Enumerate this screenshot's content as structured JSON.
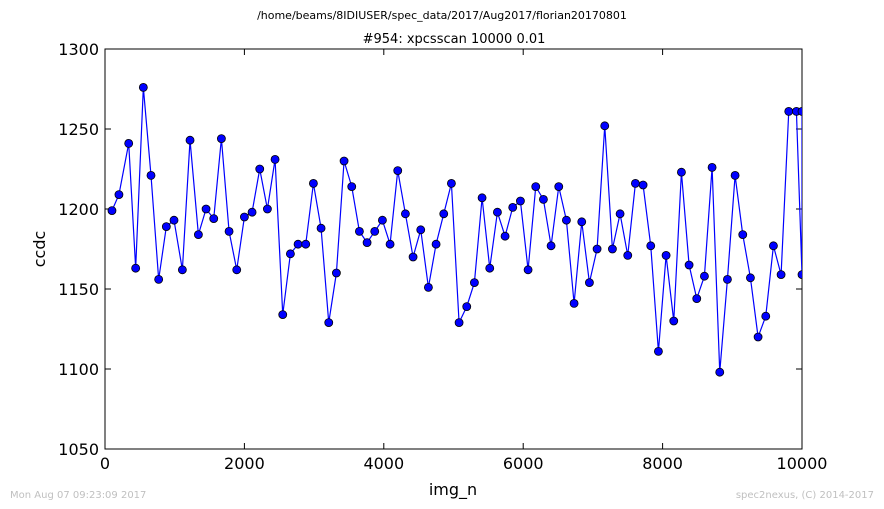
{
  "header": {
    "suptitle": "/home/beams/8IDIUSER/spec_data/2017/Aug2017/florian20170801",
    "title": "#954: xpcsscan 10000 0.01"
  },
  "footer": {
    "timestamp": "Mon Aug 07 09:23:09 2017",
    "credit": "spec2nexus, (C) 2014-2017"
  },
  "colors": {
    "line": "#0000ff",
    "marker_edge": "#000000",
    "footer_text": "#c0c0c0"
  },
  "chart_data": {
    "type": "line",
    "title": "#954: xpcsscan 10000 0.01",
    "xlabel": "img_n",
    "ylabel": "ccdc",
    "xlim": [
      0,
      10000
    ],
    "ylim": [
      1050,
      1300
    ],
    "xticks": [
      0,
      2000,
      4000,
      6000,
      8000,
      10000
    ],
    "yticks": [
      1050,
      1100,
      1150,
      1200,
      1250,
      1300
    ],
    "xtick_labels": [
      "0",
      "2000",
      "4000",
      "6000",
      "8000",
      "10000"
    ],
    "ytick_labels": [
      "1050",
      "1100",
      "1150",
      "1200",
      "1250",
      "1300"
    ],
    "grid": false,
    "legend": "none",
    "marker": "circle",
    "series": [
      {
        "x": [
          100,
          200,
          340,
          440,
          550,
          660,
          770,
          880,
          990,
          1110,
          1220,
          1340,
          1450,
          1560,
          1670,
          1780,
          1890,
          2000,
          2110,
          2220,
          2330,
          2440,
          2550,
          2660,
          2770,
          2880,
          2990,
          3100,
          3210,
          3320,
          3430,
          3540,
          3650,
          3760,
          3870,
          3980,
          4090,
          4200,
          4310,
          4420,
          4530,
          4640,
          4750,
          4860,
          4970,
          5080,
          5190,
          5300,
          5410,
          5520,
          5630,
          5740,
          5850,
          5960,
          6070,
          6180,
          6290,
          6400,
          6510,
          6620,
          6730,
          6840,
          6950,
          7060,
          7170,
          7280,
          7390,
          7500,
          7610,
          7720,
          7830,
          7940,
          8050,
          8160,
          8270,
          8380,
          8490,
          8600,
          8710,
          8820,
          8930,
          9040,
          9150,
          9260,
          9370,
          9480,
          9590,
          9700,
          9810,
          9920,
          10000,
          10000
        ],
        "y": [
          1199,
          1209,
          1241,
          1163,
          1276,
          1221,
          1156,
          1189,
          1193,
          1162,
          1243,
          1184,
          1200,
          1194,
          1244,
          1186,
          1162,
          1195,
          1198,
          1225,
          1200,
          1231,
          1134,
          1172,
          1178,
          1178,
          1216,
          1188,
          1129,
          1160,
          1230,
          1214,
          1186,
          1179,
          1186,
          1193,
          1178,
          1224,
          1197,
          1170,
          1187,
          1151,
          1178,
          1197,
          1216,
          1129,
          1139,
          1154,
          1207,
          1163,
          1198,
          1183,
          1201,
          1205,
          1162,
          1214,
          1206,
          1177,
          1214,
          1193,
          1141,
          1192,
          1154,
          1175,
          1252,
          1175,
          1197,
          1171,
          1216,
          1215,
          1177,
          1111,
          1171,
          1130,
          1223,
          1165,
          1144,
          1158,
          1226,
          1098,
          1156,
          1221,
          1184,
          1157,
          1120,
          1133,
          1177,
          1159,
          1261,
          1261,
          1159,
          1261
        ]
      }
    ]
  }
}
